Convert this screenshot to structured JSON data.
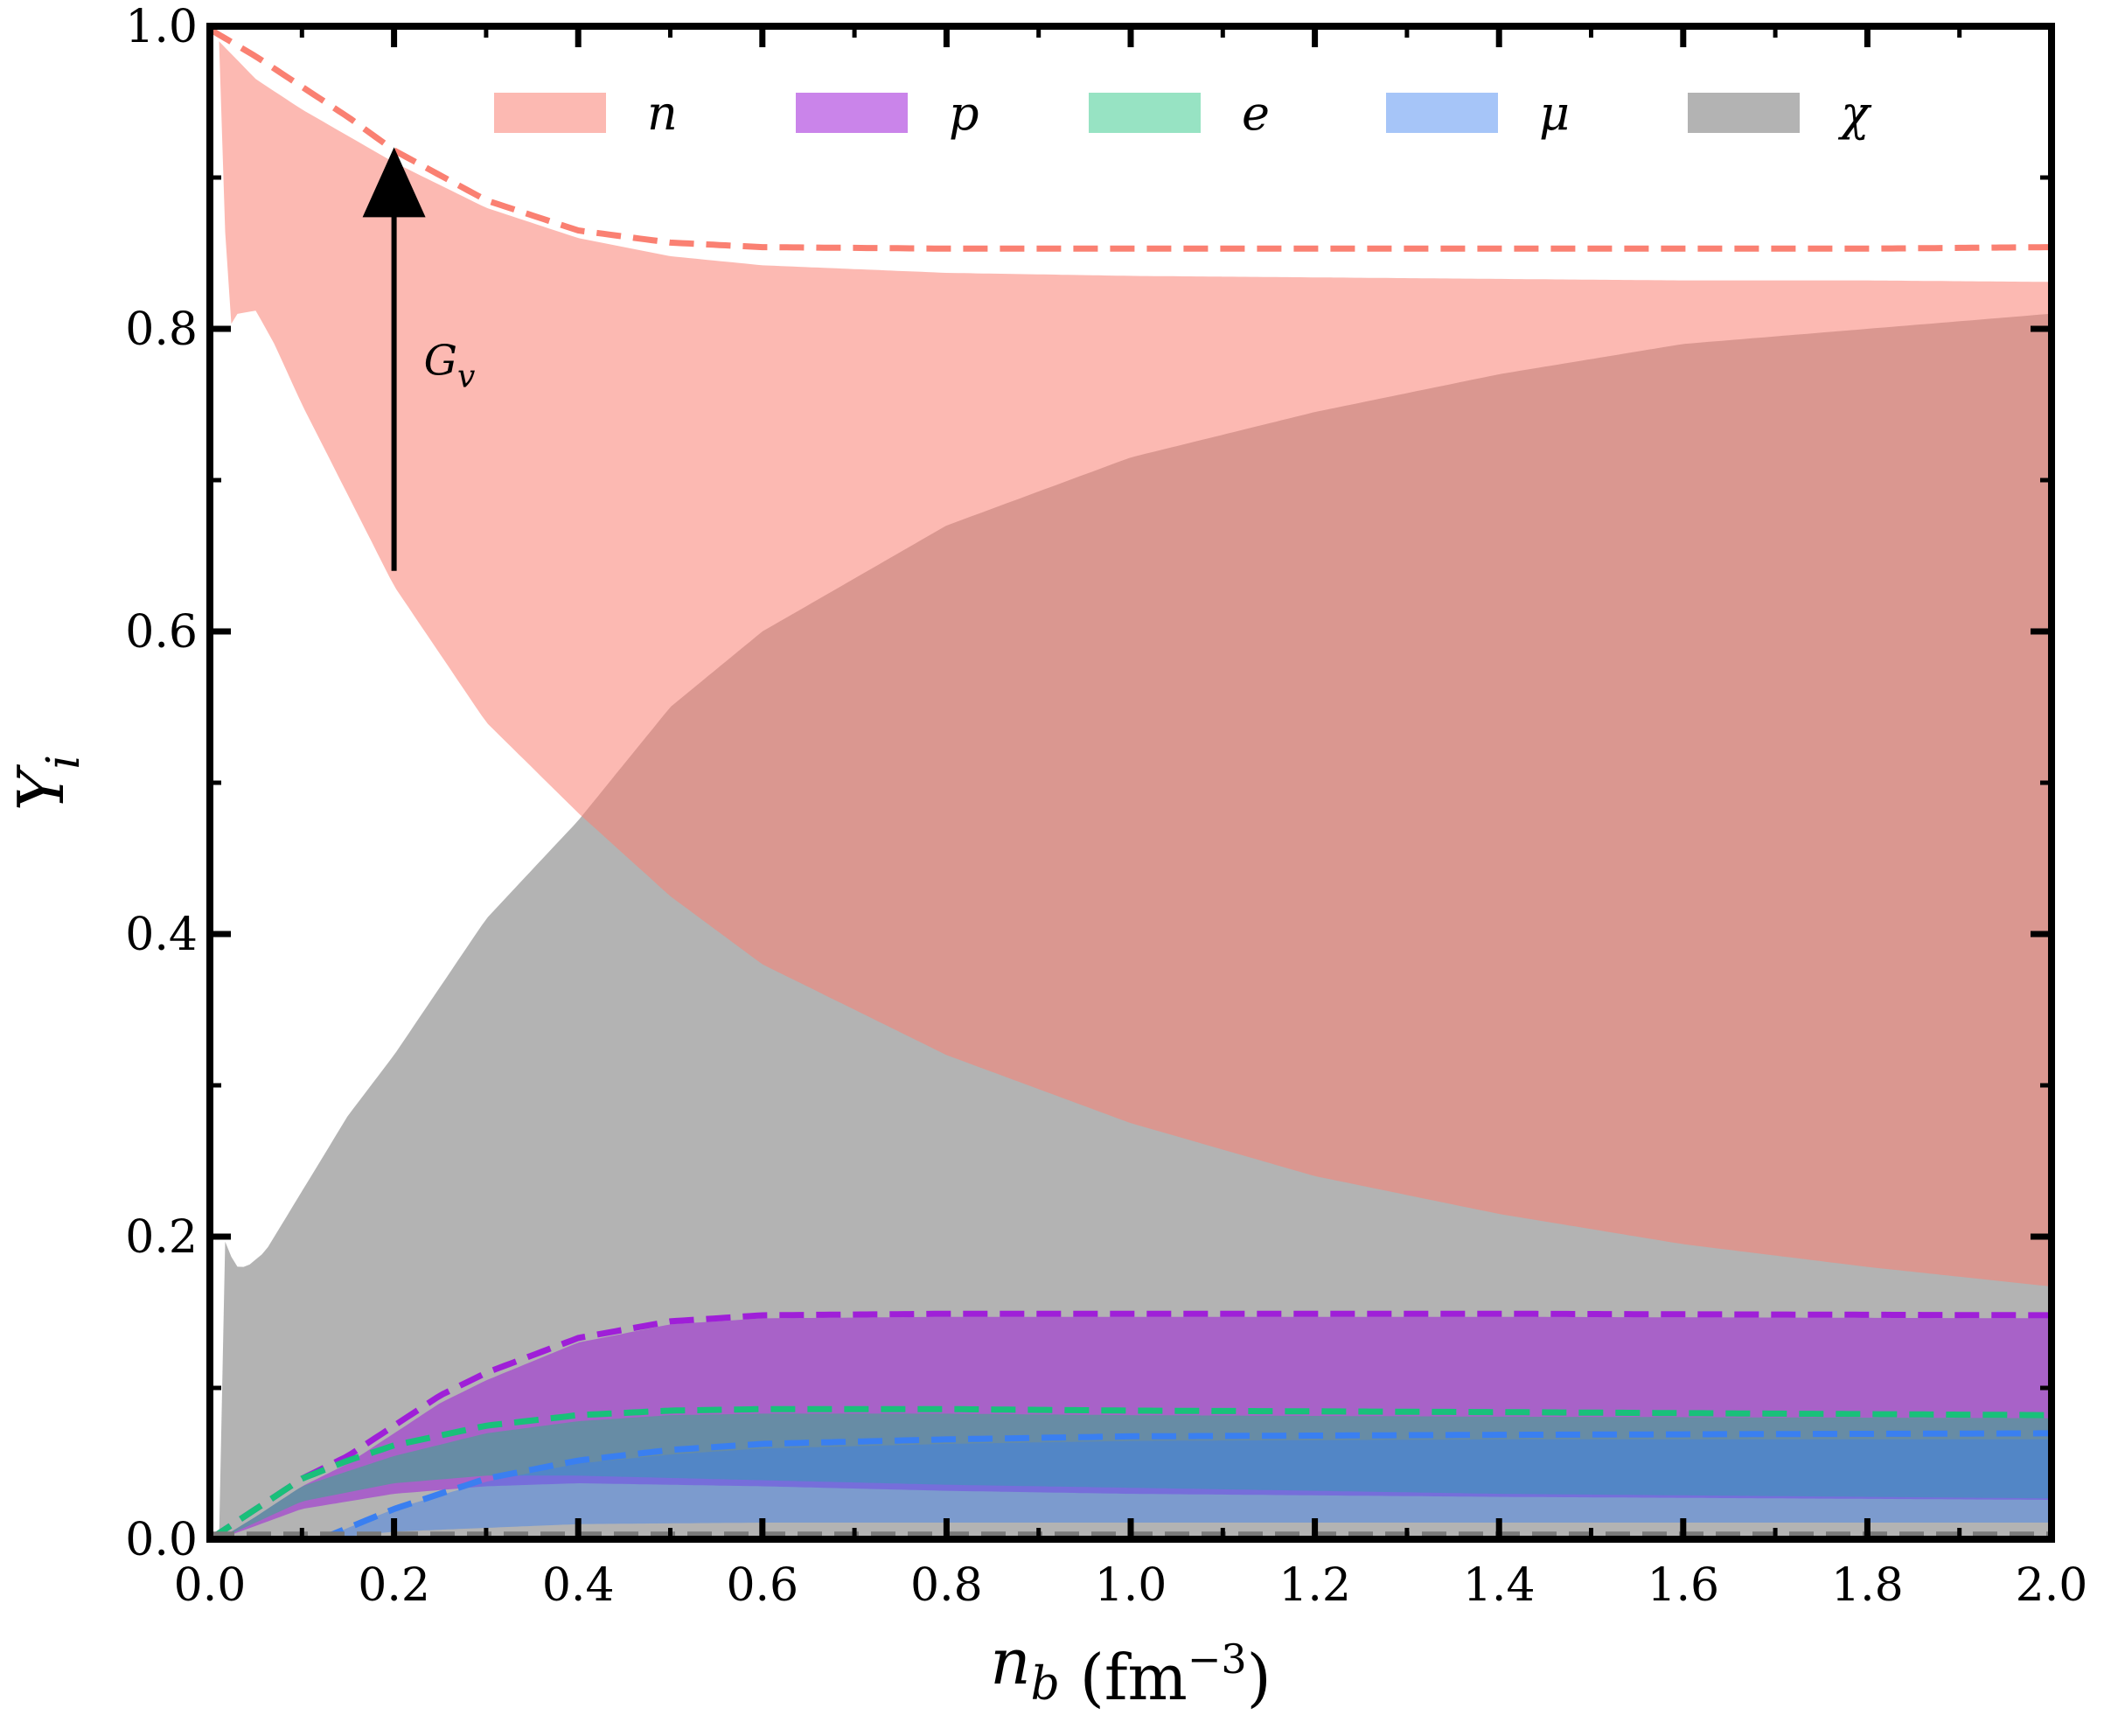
{
  "chart_data": {
    "type": "area",
    "xlabel": "n_b (fm^-3)",
    "ylabel": "Y_i",
    "xlim": [
      0.0,
      2.0
    ],
    "ylim": [
      0.0,
      1.0
    ],
    "xticks": [
      "0.0",
      "0.2",
      "0.4",
      "0.6",
      "0.8",
      "1.0",
      "1.2",
      "1.4",
      "1.6",
      "1.8",
      "2.0"
    ],
    "yticks": [
      "0.0",
      "0.2",
      "0.4",
      "0.6",
      "0.8",
      "1.0"
    ],
    "grid": false,
    "legend_position": "top",
    "annotation": {
      "text": "G_v",
      "x": 0.2,
      "y_from": 0.64,
      "y_to": 0.92
    },
    "series": [
      {
        "name": "n",
        "color": "#fa8072",
        "band_upper": {
          "x": [
            0.01,
            0.05,
            0.1,
            0.2,
            0.3,
            0.4,
            0.5,
            0.6,
            0.8,
            1.0,
            1.2,
            1.4,
            1.6,
            1.8,
            2.0
          ],
          "y": [
            0.99,
            0.965,
            0.945,
            0.91,
            0.88,
            0.86,
            0.848,
            0.842,
            0.837,
            0.835,
            0.834,
            0.833,
            0.832,
            0.832,
            0.831
          ]
        },
        "band_lower": {
          "x": [
            0.01,
            0.02,
            0.03,
            0.05,
            0.07,
            0.1,
            0.15,
            0.2,
            0.3,
            0.4,
            0.5,
            0.6,
            0.8,
            1.0,
            1.2,
            1.4,
            1.6,
            1.8,
            2.0
          ],
          "y": [
            0.99,
            0.8,
            0.81,
            0.812,
            0.79,
            0.75,
            0.69,
            0.63,
            0.54,
            0.48,
            0.425,
            0.38,
            0.32,
            0.275,
            0.24,
            0.215,
            0.195,
            0.18,
            0.167
          ]
        },
        "dashed": {
          "x": [
            0.0,
            0.05,
            0.1,
            0.15,
            0.2,
            0.3,
            0.4,
            0.5,
            0.6,
            0.8,
            1.0,
            1.2,
            1.4,
            1.6,
            1.8,
            2.0
          ],
          "y": [
            0.998,
            0.98,
            0.96,
            0.94,
            0.918,
            0.885,
            0.865,
            0.857,
            0.854,
            0.853,
            0.853,
            0.853,
            0.853,
            0.853,
            0.853,
            0.854
          ]
        }
      },
      {
        "name": "p",
        "color": "#9f1fd8",
        "band_upper": {
          "x": [
            0.01,
            0.05,
            0.1,
            0.15,
            0.2,
            0.25,
            0.3,
            0.4,
            0.5,
            0.6,
            0.8,
            1.0,
            1.4,
            2.0
          ],
          "y": [
            0.0,
            0.015,
            0.035,
            0.05,
            0.07,
            0.09,
            0.105,
            0.13,
            0.142,
            0.146,
            0.147,
            0.147,
            0.147,
            0.146
          ]
        },
        "band_lower": {
          "x": [
            0.01,
            0.1,
            0.2,
            0.3,
            0.4,
            0.6,
            0.8,
            1.0,
            1.4,
            2.0
          ],
          "y": [
            0.0,
            0.02,
            0.03,
            0.035,
            0.037,
            0.035,
            0.032,
            0.03,
            0.028,
            0.026
          ]
        },
        "dashed": {
          "x": [
            0.0,
            0.05,
            0.1,
            0.15,
            0.2,
            0.25,
            0.3,
            0.4,
            0.5,
            0.6,
            0.8,
            1.0,
            1.4,
            2.0
          ],
          "y": [
            0.0,
            0.02,
            0.04,
            0.055,
            0.075,
            0.095,
            0.11,
            0.133,
            0.144,
            0.148,
            0.149,
            0.149,
            0.149,
            0.148
          ]
        }
      },
      {
        "name": "e",
        "color": "#19c07a",
        "band_upper": {
          "x": [
            0.01,
            0.05,
            0.1,
            0.15,
            0.2,
            0.3,
            0.4,
            0.5,
            0.6,
            0.8,
            1.0,
            1.4,
            2.0
          ],
          "y": [
            0.0,
            0.015,
            0.035,
            0.045,
            0.055,
            0.07,
            0.078,
            0.082,
            0.083,
            0.083,
            0.082,
            0.081,
            0.08
          ]
        },
        "band_lower": {
          "x": [
            0.01,
            0.1,
            0.2,
            0.3,
            0.4,
            0.6,
            0.8,
            1.0,
            1.4,
            2.0
          ],
          "y": [
            0.0,
            0.025,
            0.037,
            0.042,
            0.042,
            0.039,
            0.036,
            0.034,
            0.03,
            0.027
          ]
        },
        "dashed": {
          "x": [
            0.0,
            0.05,
            0.1,
            0.15,
            0.2,
            0.3,
            0.4,
            0.5,
            0.6,
            0.8,
            1.0,
            1.4,
            2.0
          ],
          "y": [
            0.0,
            0.02,
            0.04,
            0.052,
            0.062,
            0.075,
            0.082,
            0.085,
            0.086,
            0.086,
            0.085,
            0.084,
            0.082
          ]
        }
      },
      {
        "name": "μ",
        "color": "#3a7ff0",
        "band_upper": {
          "x": [
            0.12,
            0.2,
            0.3,
            0.4,
            0.5,
            0.6,
            0.8,
            1.0,
            1.4,
            2.0
          ],
          "y": [
            0.0,
            0.02,
            0.038,
            0.05,
            0.056,
            0.06,
            0.063,
            0.065,
            0.066,
            0.066
          ]
        },
        "band_lower": {
          "x": [
            0.12,
            0.2,
            0.4,
            0.6,
            0.8,
            1.0,
            1.4,
            2.0
          ],
          "y": [
            0.0,
            0.005,
            0.01,
            0.011,
            0.011,
            0.011,
            0.011,
            0.011
          ]
        },
        "dashed": {
          "x": [
            0.12,
            0.2,
            0.3,
            0.4,
            0.5,
            0.6,
            0.8,
            1.0,
            1.4,
            2.0
          ],
          "y": [
            0.0,
            0.02,
            0.04,
            0.052,
            0.059,
            0.063,
            0.066,
            0.068,
            0.069,
            0.07
          ]
        }
      },
      {
        "name": "χ",
        "color": "#808080",
        "band_upper": {
          "x": [
            0.01,
            0.015,
            0.02,
            0.03,
            0.04,
            0.06,
            0.1,
            0.15,
            0.2,
            0.3,
            0.4,
            0.5,
            0.6,
            0.8,
            1.0,
            1.2,
            1.4,
            1.6,
            1.8,
            2.0
          ],
          "y": [
            0.0,
            0.2,
            0.19,
            0.18,
            0.18,
            0.19,
            0.23,
            0.28,
            0.32,
            0.41,
            0.475,
            0.55,
            0.6,
            0.67,
            0.715,
            0.745,
            0.77,
            0.79,
            0.8,
            0.81
          ]
        },
        "band_lower": {
          "x": [
            0.01,
            2.0
          ],
          "y": [
            0.0,
            0.0
          ]
        },
        "dashed": {
          "x": [
            0.0,
            2.0
          ],
          "y": [
            0.003,
            0.003
          ]
        }
      }
    ]
  }
}
